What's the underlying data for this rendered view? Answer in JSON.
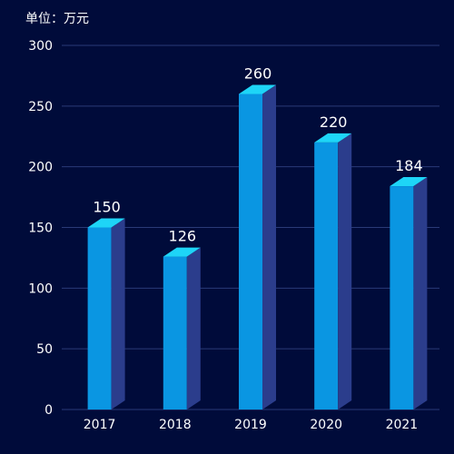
{
  "chart_data": {
    "type": "bar",
    "unit_label": "单位：万元",
    "categories": [
      "2017",
      "2018",
      "2019",
      "2020",
      "2021"
    ],
    "values": [
      150,
      126,
      260,
      220,
      184
    ],
    "yticks": [
      0,
      50,
      100,
      150,
      200,
      250,
      300
    ],
    "ylim": [
      0,
      300
    ],
    "grid": true,
    "colors": {
      "background": "#000b3a",
      "bar_front": "#0a96e2",
      "bar_side": "#2b3d8c",
      "bar_top": "#1ed5f7",
      "grid": "#2a3a78",
      "axis_text": "#ffffff",
      "value_text": "#ffffff"
    }
  }
}
